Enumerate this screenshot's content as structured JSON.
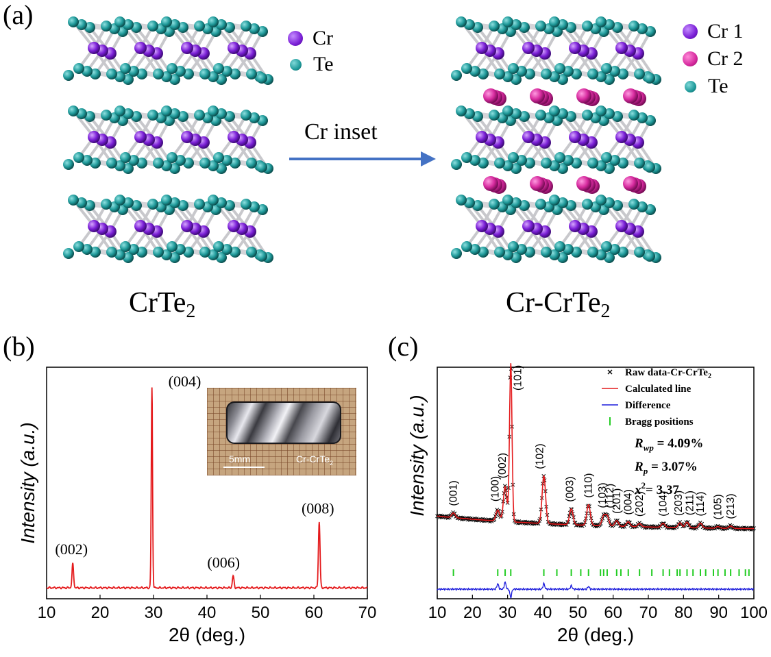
{
  "panel_a": {
    "label": "(a)",
    "left_formula": {
      "base": "CrTe",
      "sub": "2"
    },
    "right_formula": {
      "base": "Cr-CrTe",
      "sub": "2"
    },
    "arrow_label": "Cr inset",
    "legend_left": [
      {
        "name": "Cr",
        "color": "#8a2be2"
      },
      {
        "name": "Te",
        "color": "#1f9a9a"
      }
    ],
    "legend_right": [
      {
        "name": "Cr 1",
        "color": "#8a2be2"
      },
      {
        "name": "Cr 2",
        "color": "#d62a9e"
      },
      {
        "name": "Te",
        "color": "#1f9a9a"
      }
    ]
  },
  "panel_b": {
    "label": "(b)",
    "inset": {
      "scale_label": "5mm",
      "sample_label_base": "Cr-CrTe",
      "sample_label_sub": "2"
    }
  },
  "panel_c": {
    "label": "(c)"
  },
  "chart_data": [
    {
      "type": "line",
      "panel": "(b)",
      "xlabel": "2θ (deg.)",
      "ylabel": "Intensity (a.u.)",
      "xlim": [
        10,
        70
      ],
      "xticks": [
        10,
        20,
        30,
        40,
        50,
        60,
        70
      ],
      "color": "#e41a1c",
      "peaks": [
        {
          "x": 14.9,
          "height": 0.12,
          "label": "(002)"
        },
        {
          "x": 29.7,
          "height": 1.0,
          "label": "(004)"
        },
        {
          "x": 44.9,
          "height": 0.06,
          "label": "(006)"
        },
        {
          "x": 61.0,
          "height": 0.33,
          "label": "(008)"
        }
      ]
    },
    {
      "type": "line",
      "panel": "(c)",
      "xlabel": "2θ (deg.)",
      "ylabel": "Intensity (a.u.)",
      "xlim": [
        10,
        100
      ],
      "xticks": [
        10,
        20,
        30,
        40,
        50,
        60,
        70,
        80,
        90,
        100
      ],
      "legend": [
        "Raw data-Cr-CrTe2",
        "Calculated line",
        "Difference",
        "Bragg positions"
      ],
      "legend_items": [
        {
          "name": "Raw data-Cr-CrTe",
          "sub": "2",
          "symbol": "×",
          "color": "#000000"
        },
        {
          "name": "Calculated line",
          "sub": "",
          "symbol": "line",
          "color": "#e41a1c"
        },
        {
          "name": "Difference",
          "sub": "",
          "symbol": "line",
          "color": "#1a1adb"
        },
        {
          "name": "Bragg positions",
          "sub": "",
          "symbol": "tick",
          "color": "#22cc22"
        }
      ],
      "stats": [
        {
          "sym": "R",
          "subscript": "wp",
          "text": "= 4.09%"
        },
        {
          "sym": "R",
          "subscript": "p",
          "text": "= 3.07%"
        },
        {
          "sym": "x",
          "sup": "2",
          "text": "= 3.37"
        }
      ],
      "peaks": [
        {
          "x": 14.6,
          "height": 0.03,
          "label": "(001)"
        },
        {
          "x": 27.2,
          "height": 0.07,
          "label": "(100)"
        },
        {
          "x": 29.3,
          "height": 0.22,
          "label": "(002)"
        },
        {
          "x": 30.9,
          "height": 1.0,
          "label": "(101)"
        },
        {
          "x": 40.3,
          "height": 0.3,
          "label": "(102)"
        },
        {
          "x": 48.1,
          "height": 0.1,
          "label": "(003)"
        },
        {
          "x": 53.0,
          "height": 0.13,
          "label": "(110)"
        },
        {
          "x": 57.3,
          "height": 0.06,
          "label": "(103)"
        },
        {
          "x": 58.3,
          "height": 0.06,
          "label": "(112)"
        },
        {
          "x": 61.0,
          "height": 0.035,
          "label": "(201)"
        },
        {
          "x": 64.3,
          "height": 0.03,
          "label": "(004)"
        },
        {
          "x": 67.5,
          "height": 0.02,
          "label": "(202)"
        },
        {
          "x": 74.2,
          "height": 0.025,
          "label": "(104)"
        },
        {
          "x": 79.0,
          "height": 0.03,
          "label": "(203)"
        },
        {
          "x": 81.0,
          "height": 0.035,
          "label": "(211)"
        },
        {
          "x": 84.8,
          "height": 0.03,
          "label": "(114)"
        },
        {
          "x": 89.8,
          "height": 0.01,
          "label": "(105)"
        },
        {
          "x": 93.4,
          "height": 0.015,
          "label": "(213)"
        }
      ],
      "bragg_positions": [
        14.6,
        27.2,
        29.3,
        30.9,
        40.3,
        44.0,
        48.1,
        50.8,
        53.0,
        56.4,
        57.3,
        58.3,
        61.0,
        62.2,
        64.3,
        67.5,
        71.0,
        74.2,
        76.0,
        78.2,
        79.0,
        81.0,
        82.7,
        84.8,
        86.3,
        88.5,
        89.8,
        91.8,
        93.4,
        95.8,
        97.6,
        98.6
      ]
    }
  ]
}
